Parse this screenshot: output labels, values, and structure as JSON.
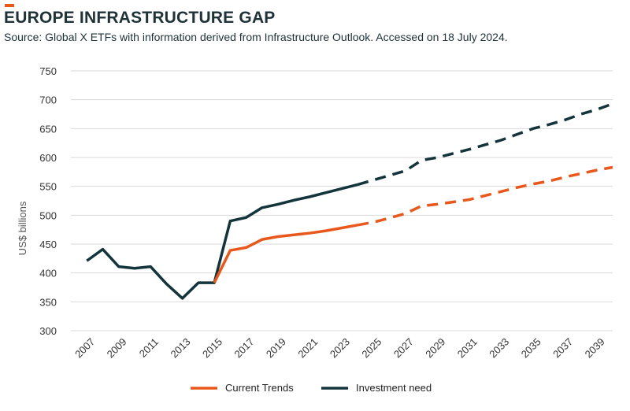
{
  "header": {
    "title": "EUROPE INFRASTRUCTURE GAP",
    "subtitle": "Source: Global X ETFs with information derived from Infrastructure Outlook. Accessed on 18 July 2024."
  },
  "colors": {
    "accent": "#e8581c",
    "current_trends": "#e8581c",
    "investment_need": "#13343b",
    "grid": "#d9d9d9",
    "text": "#1e3238"
  },
  "chart_data": {
    "type": "line",
    "title": "EUROPE INFRASTRUCTURE GAP",
    "xlabel": "",
    "ylabel": "US$ billions",
    "ylim": [
      300,
      750
    ],
    "yticks": [
      300,
      350,
      400,
      450,
      500,
      550,
      600,
      650,
      700,
      750
    ],
    "xlim": [
      2006,
      2040
    ],
    "xticks": [
      2007,
      2009,
      2011,
      2013,
      2015,
      2017,
      2019,
      2021,
      2023,
      2025,
      2027,
      2029,
      2031,
      2033,
      2035,
      2037,
      2039
    ],
    "grid": true,
    "legend_position": "bottom-center",
    "forecast_start_year": 2024,
    "x": [
      2007,
      2008,
      2009,
      2010,
      2011,
      2012,
      2013,
      2014,
      2015,
      2016,
      2017,
      2018,
      2019,
      2020,
      2021,
      2022,
      2023,
      2024,
      2025,
      2026,
      2027,
      2028,
      2029,
      2030,
      2031,
      2032,
      2033,
      2034,
      2035,
      2036,
      2037,
      2038,
      2039,
      2040
    ],
    "series": [
      {
        "name": "Investment need",
        "color": "#13343b",
        "values": [
          421,
          441,
          411,
          408,
          411,
          381,
          356,
          383,
          383,
          490,
          496,
          513,
          519,
          526,
          532,
          539,
          546,
          553,
          561,
          569,
          577,
          595,
          600,
          607,
          614,
          622,
          630,
          640,
          650,
          657,
          665,
          675,
          683,
          693
        ]
      },
      {
        "name": "Current Trends",
        "color": "#e8581c",
        "values": [
          null,
          null,
          null,
          null,
          null,
          null,
          null,
          null,
          383,
          439,
          444,
          458,
          463,
          466,
          469,
          473,
          478,
          483,
          488,
          495,
          503,
          516,
          519,
          523,
          527,
          534,
          541,
          548,
          554,
          559,
          566,
          572,
          578,
          583
        ]
      }
    ]
  }
}
